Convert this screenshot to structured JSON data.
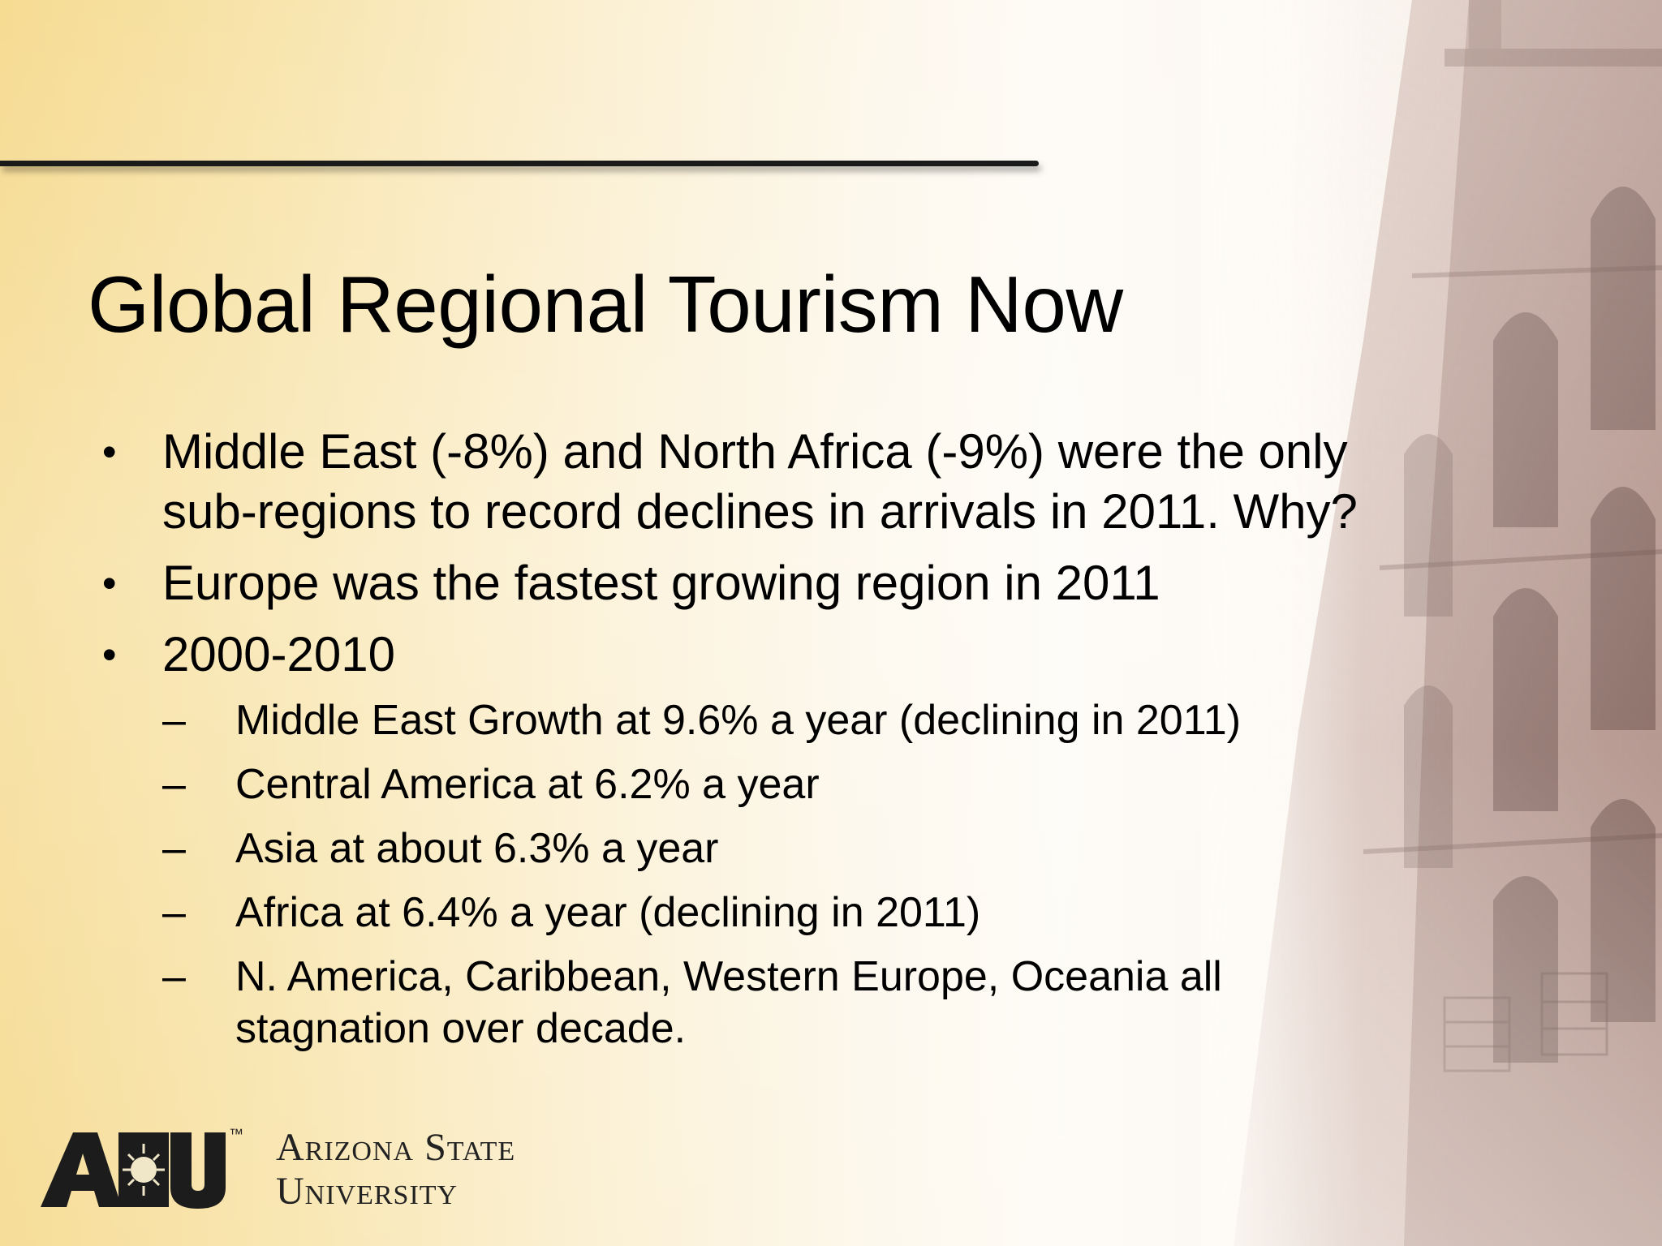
{
  "slide": {
    "title": "Global Regional Tourism Now",
    "bullets": [
      {
        "marker": "•",
        "lines": [
          "Middle East (-8%) and North Africa (-9%) were the only",
          "sub-regions to record declines in arrivals in 2011.  Why?"
        ]
      },
      {
        "marker": "•",
        "lines": [
          "Europe was the fastest growing region in 2011"
        ]
      },
      {
        "marker": "•",
        "lines": [
          "2000-2010"
        ]
      }
    ],
    "subbullets": [
      {
        "marker": "–",
        "lines": [
          "Middle East Growth at 9.6% a year (declining in 2011)"
        ]
      },
      {
        "marker": "–",
        "lines": [
          "Central America at 6.2% a year"
        ]
      },
      {
        "marker": "–",
        "lines": [
          "Asia at about 6.3% a year"
        ]
      },
      {
        "marker": "–",
        "lines": [
          "Africa at 6.4% a year (declining in 2011)"
        ]
      },
      {
        "marker": "–",
        "lines": [
          "N. America, Caribbean, Western Europe, Oceania all",
          "stagnation over decade."
        ]
      }
    ]
  },
  "logo": {
    "mark_text": "ASU",
    "trademark": "™",
    "line1": "Arizona State",
    "line2": "University"
  },
  "colors": {
    "background_left": "#f5d98c",
    "background_right": "#eee0d8",
    "text": "#000000",
    "building": "#a8867c"
  },
  "icons": {
    "logo_sunburst": "sunburst-icon",
    "background_image": "building-photo"
  }
}
